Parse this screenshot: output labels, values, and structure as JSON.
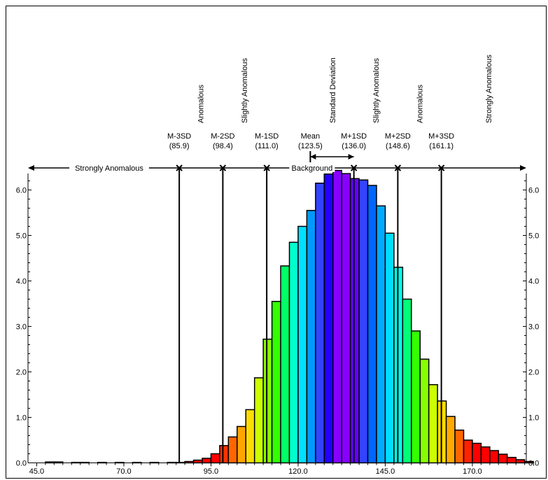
{
  "chart_data": {
    "type": "bar",
    "title": "",
    "xlabel": "",
    "ylabel": "",
    "xlim": [
      42.5,
      188
    ],
    "ylim": [
      0,
      6.5
    ],
    "bin_width": 2.5,
    "x_ticks": [
      "45.0",
      "70.0",
      "95.0",
      "120.0",
      "145.0",
      "170.0"
    ],
    "x_tick_values": [
      45,
      70,
      95,
      120,
      145,
      170
    ],
    "y_ticks": [
      "0.0",
      "1.0",
      "2.0",
      "3.0",
      "4.0",
      "5.0",
      "6.0"
    ],
    "y_tick_values": [
      0,
      1,
      2,
      3,
      4,
      5,
      6
    ],
    "grid": false,
    "stat_lines": [
      {
        "name": "M-3SD",
        "value_label": "(85.9)",
        "x": 85.9
      },
      {
        "name": "M-2SD",
        "value_label": "(98.4)",
        "x": 98.4
      },
      {
        "name": "M-1SD",
        "value_label": "(111.0)",
        "x": 111.0
      },
      {
        "name": "Mean",
        "value_label": "(123.5)",
        "x": 123.5
      },
      {
        "name": "M+1SD",
        "value_label": "(136.0)",
        "x": 136.0
      },
      {
        "name": "M+2SD",
        "value_label": "(148.6)",
        "x": 148.6
      },
      {
        "name": "M+3SD",
        "value_label": "(161.1)",
        "x": 161.1
      }
    ],
    "category_labels": [
      {
        "text": "Anomalous",
        "x": 92.0
      },
      {
        "text": "Slightly Anomalous",
        "x": 104.5
      },
      {
        "text": "Standard Deviation",
        "x": 129.8
      },
      {
        "text": "Slightly Anomalous",
        "x": 142.3
      },
      {
        "text": "Anomalous",
        "x": 154.8
      },
      {
        "text": "Strongly Anomalous",
        "x": 174.6
      }
    ],
    "range_labels": {
      "left": "Strongly Anomalous",
      "center": "Background"
    },
    "bins": [
      {
        "x0": 47.5,
        "v": 0.02,
        "color": "#ff0000"
      },
      {
        "x0": 50.0,
        "v": 0.02,
        "color": "#ff0000"
      },
      {
        "x0": 55.0,
        "v": 0.01,
        "color": "#ff0000"
      },
      {
        "x0": 57.5,
        "v": 0.01,
        "color": "#ff0000"
      },
      {
        "x0": 62.5,
        "v": 0.01,
        "color": "#ff0000"
      },
      {
        "x0": 67.5,
        "v": 0.01,
        "color": "#ff0000"
      },
      {
        "x0": 72.5,
        "v": 0.01,
        "color": "#ff0000"
      },
      {
        "x0": 77.5,
        "v": 0.01,
        "color": "#ff0000"
      },
      {
        "x0": 82.5,
        "v": 0.01,
        "color": "#ff0000"
      },
      {
        "x0": 85.0,
        "v": 0.01,
        "color": "#ff0000"
      },
      {
        "x0": 87.5,
        "v": 0.03,
        "color": "#ff0000"
      },
      {
        "x0": 90.0,
        "v": 0.06,
        "color": "#ff0000"
      },
      {
        "x0": 92.5,
        "v": 0.1,
        "color": "#ff0000"
      },
      {
        "x0": 95.0,
        "v": 0.2,
        "color": "#ff0000"
      },
      {
        "x0": 97.5,
        "v": 0.38,
        "color": "#ff3300"
      },
      {
        "x0": 100.0,
        "v": 0.57,
        "color": "#ff6600"
      },
      {
        "x0": 102.5,
        "v": 0.8,
        "color": "#ffa500"
      },
      {
        "x0": 105.0,
        "v": 1.17,
        "color": "#ffdd00"
      },
      {
        "x0": 107.5,
        "v": 1.87,
        "color": "#ccff00"
      },
      {
        "x0": 110.0,
        "v": 2.72,
        "color": "#88ff00"
      },
      {
        "x0": 112.5,
        "v": 3.55,
        "color": "#33ff00"
      },
      {
        "x0": 115.0,
        "v": 4.33,
        "color": "#00ff66"
      },
      {
        "x0": 117.5,
        "v": 4.85,
        "color": "#00ffcc"
      },
      {
        "x0": 120.0,
        "v": 5.2,
        "color": "#00e0ff"
      },
      {
        "x0": 122.5,
        "v": 5.55,
        "color": "#0099ff"
      },
      {
        "x0": 125.0,
        "v": 6.15,
        "color": "#3344ff"
      },
      {
        "x0": 127.5,
        "v": 6.35,
        "color": "#2200ff"
      },
      {
        "x0": 130.0,
        "v": 6.43,
        "color": "#8800ff"
      },
      {
        "x0": 132.5,
        "v": 6.36,
        "color": "#8800ff"
      },
      {
        "x0": 135.0,
        "v": 6.25,
        "color": "#6600ff"
      },
      {
        "x0": 137.5,
        "v": 6.22,
        "color": "#3344ff"
      },
      {
        "x0": 140.0,
        "v": 6.1,
        "color": "#0066ff"
      },
      {
        "x0": 142.5,
        "v": 5.65,
        "color": "#00aaff"
      },
      {
        "x0": 145.0,
        "v": 5.05,
        "color": "#00ddff"
      },
      {
        "x0": 147.5,
        "v": 4.3,
        "color": "#00ffee"
      },
      {
        "x0": 150.0,
        "v": 3.6,
        "color": "#00ff77"
      },
      {
        "x0": 152.5,
        "v": 2.9,
        "color": "#33ff00"
      },
      {
        "x0": 155.0,
        "v": 2.28,
        "color": "#88ff00"
      },
      {
        "x0": 157.5,
        "v": 1.72,
        "color": "#ccff00"
      },
      {
        "x0": 160.0,
        "v": 1.36,
        "color": "#ffdd00"
      },
      {
        "x0": 162.5,
        "v": 1.02,
        "color": "#ffaa00"
      },
      {
        "x0": 165.0,
        "v": 0.72,
        "color": "#ff6600"
      },
      {
        "x0": 167.5,
        "v": 0.5,
        "color": "#ff2200"
      },
      {
        "x0": 170.0,
        "v": 0.43,
        "color": "#ff0000"
      },
      {
        "x0": 172.5,
        "v": 0.35,
        "color": "#ff0000"
      },
      {
        "x0": 175.0,
        "v": 0.27,
        "color": "#ff0000"
      },
      {
        "x0": 177.5,
        "v": 0.19,
        "color": "#ff0000"
      },
      {
        "x0": 180.0,
        "v": 0.12,
        "color": "#ff0000"
      },
      {
        "x0": 182.5,
        "v": 0.07,
        "color": "#ff0000"
      },
      {
        "x0": 185.0,
        "v": 0.03,
        "color": "#ff0000"
      }
    ]
  }
}
